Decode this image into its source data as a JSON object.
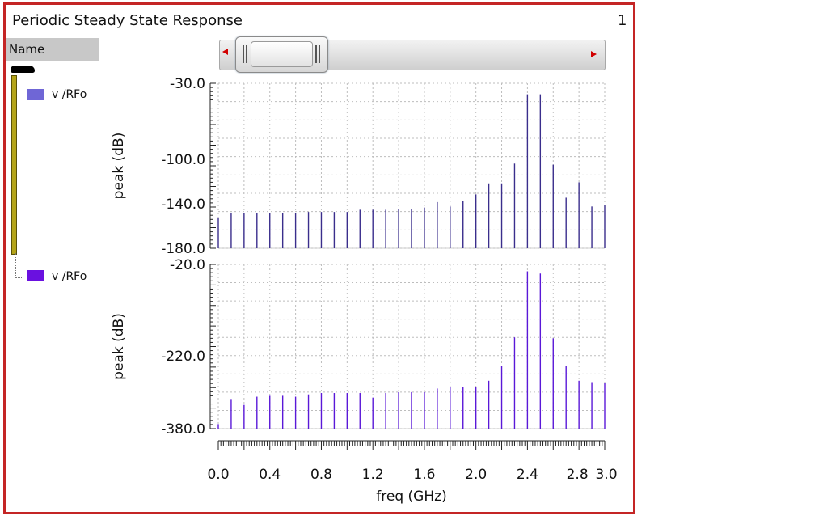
{
  "window": {
    "title": "Periodic Steady State Response",
    "page_number": "1"
  },
  "sidebar": {
    "header": "Name",
    "items": [
      {
        "label": "v /RFo",
        "color": "#6f66d6"
      },
      {
        "label": "v /RFo",
        "color": "#6a11e0"
      }
    ]
  },
  "colors": {
    "frame_border": "#c42525",
    "trace_top": "#3a2e8c",
    "trace_bottom": "#5a18d8"
  },
  "chart_data": [
    {
      "type": "bar",
      "xlabel": "",
      "ylabel": "peak (dB)",
      "y_ticks": [
        "-30.0",
        "-100.0",
        "-140.0",
        "-180.0"
      ],
      "ylim": [
        -180,
        -30
      ],
      "x": [
        0.0,
        0.1,
        0.2,
        0.3,
        0.4,
        0.5,
        0.6,
        0.7,
        0.8,
        0.9,
        1.0,
        1.1,
        1.2,
        1.3,
        1.4,
        1.5,
        1.6,
        1.7,
        1.8,
        1.9,
        2.0,
        2.1,
        2.2,
        2.3,
        2.4,
        2.5,
        2.6,
        2.7,
        2.8,
        2.9,
        3.0
      ],
      "values": [
        -152,
        -148,
        -148,
        -148,
        -148,
        -148,
        -148,
        -147,
        -147,
        -147,
        -147,
        -145,
        -145,
        -145,
        -144,
        -144,
        -143,
        -138,
        -142,
        -137,
        -131,
        -121,
        -121,
        -103,
        -40,
        -40,
        -104,
        -134,
        -120,
        -142,
        -141
      ],
      "grid": true
    },
    {
      "type": "bar",
      "xlabel": "freq (GHz)",
      "ylabel": "peak (dB)",
      "y_ticks": [
        "-20.0",
        "-220.0",
        "-380.0"
      ],
      "ylim": [
        -380,
        -20
      ],
      "x": [
        0.0,
        0.1,
        0.2,
        0.3,
        0.4,
        0.5,
        0.6,
        0.7,
        0.8,
        0.9,
        1.0,
        1.1,
        1.2,
        1.3,
        1.4,
        1.5,
        1.6,
        1.7,
        1.8,
        1.9,
        2.0,
        2.1,
        2.2,
        2.3,
        2.4,
        2.5,
        2.6,
        2.7,
        2.8,
        2.9,
        3.0
      ],
      "x_ticks": [
        "0.0",
        "0.4",
        "0.8",
        "1.2",
        "1.6",
        "2.0",
        "2.4",
        "2.8",
        "3.0"
      ],
      "xlim": [
        0,
        3.0
      ],
      "values": [
        -370,
        -315,
        -328,
        -310,
        -308,
        -308,
        -310,
        -305,
        -302,
        -302,
        -302,
        -302,
        -312,
        -302,
        -300,
        -300,
        -300,
        -292,
        -288,
        -288,
        -288,
        -275,
        -242,
        -180,
        -35,
        -40,
        -182,
        -242,
        -275,
        -278,
        -280
      ],
      "grid": true
    }
  ]
}
